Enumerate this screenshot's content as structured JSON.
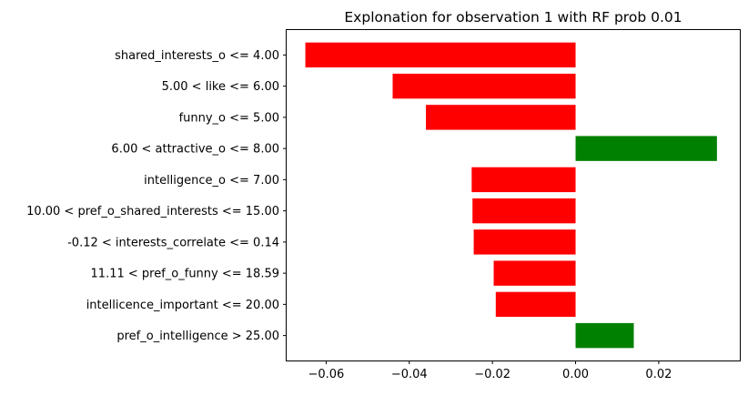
{
  "chart_data": {
    "type": "bar",
    "orientation": "horizontal",
    "title": "Explonation for observation 1 with RF prob 0.01",
    "xlabel": "",
    "ylabel": "",
    "xlim": [
      -0.0695,
      0.0395
    ],
    "xticks": [
      -0.06,
      -0.04,
      -0.02,
      0.0,
      0.02
    ],
    "xtick_labels": [
      "−0.06",
      "−0.04",
      "−0.02",
      "0.00",
      "0.02"
    ],
    "grid": false,
    "colors": {
      "negative": "#ff0000",
      "positive": "#008000"
    },
    "categories": [
      "shared_interests_o <= 4.00",
      "5.00 < like <= 6.00",
      "funny_o <= 5.00",
      "6.00 < attractive_o <= 8.00",
      "intelligence_o <= 7.00",
      "10.00 < pref_o_shared_interests <= 15.00",
      "-0.12 < interests_correlate <= 0.14",
      "11.11 < pref_o_funny <= 18.59",
      "intellicence_important <= 20.00",
      "pref_o_intelligence > 25.00"
    ],
    "values": [
      -0.065,
      -0.044,
      -0.036,
      0.034,
      -0.025,
      -0.0248,
      -0.0245,
      -0.0197,
      -0.0192,
      0.014
    ]
  }
}
